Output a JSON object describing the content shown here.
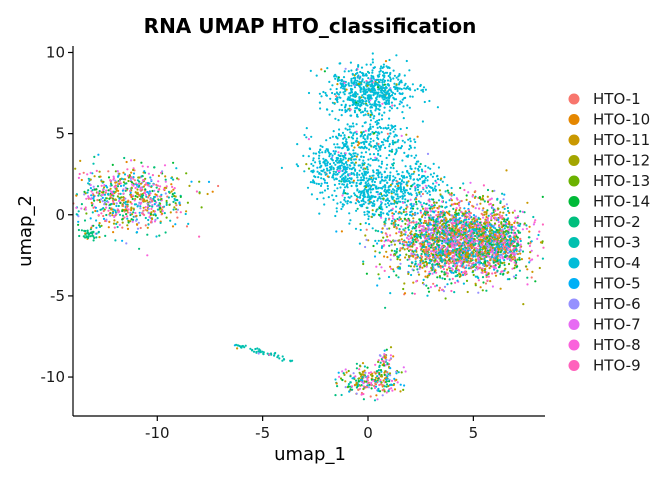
{
  "chart_data": {
    "type": "scatter",
    "title": "RNA UMAP HTO_classification",
    "xlabel": "umap_1",
    "ylabel": "umap_2",
    "xlim": [
      -14.0,
      8.4
    ],
    "ylim": [
      -12.4,
      10.4
    ],
    "x_ticks": [
      -10,
      -5,
      0,
      5
    ],
    "y_ticks": [
      -10,
      -5,
      0,
      5,
      10
    ],
    "grid": false,
    "legend_position": "right",
    "series": [
      {
        "name": "HTO-1",
        "color": "#F8766D"
      },
      {
        "name": "HTO-10",
        "color": "#E58700"
      },
      {
        "name": "HTO-11",
        "color": "#C99800"
      },
      {
        "name": "HTO-12",
        "color": "#A3A500"
      },
      {
        "name": "HTO-13",
        "color": "#6BB100"
      },
      {
        "name": "HTO-14",
        "color": "#00BA38"
      },
      {
        "name": "HTO-2",
        "color": "#00BF7D"
      },
      {
        "name": "HTO-3",
        "color": "#00C0AF"
      },
      {
        "name": "HTO-4",
        "color": "#00BCD8"
      },
      {
        "name": "HTO-5",
        "color": "#00B0F6"
      },
      {
        "name": "HTO-6",
        "color": "#9590FF"
      },
      {
        "name": "HTO-7",
        "color": "#E76BF3"
      },
      {
        "name": "HTO-8",
        "color": "#FA62DB"
      },
      {
        "name": "HTO-9",
        "color": "#FF62BC"
      }
    ],
    "clusters": [
      {
        "cx": -11.3,
        "cy": 1.0,
        "sx": 1.3,
        "sy": 1.0,
        "n": 750,
        "mix": "all"
      },
      {
        "cx": -13.2,
        "cy": -1.2,
        "sx": 0.25,
        "sy": 0.15,
        "n": 40,
        "mix": "HTO-2"
      },
      {
        "cx": 0.0,
        "cy": 7.6,
        "sx": 1.0,
        "sy": 0.8,
        "n": 650,
        "mix": "HTO-4"
      },
      {
        "cx": 0.4,
        "cy": 4.6,
        "sx": 0.9,
        "sy": 0.7,
        "n": 220,
        "mix": "HTO-4"
      },
      {
        "cx": -1.4,
        "cy": 3.0,
        "sx": 0.8,
        "sy": 0.9,
        "n": 350,
        "mix": "HTO-4"
      },
      {
        "cx": 0.4,
        "cy": 1.2,
        "sx": 0.9,
        "sy": 0.9,
        "n": 350,
        "mix": "HTO-4"
      },
      {
        "cx": 2.2,
        "cy": 1.8,
        "sx": 0.8,
        "sy": 0.8,
        "n": 220,
        "mix": "HTO-4"
      },
      {
        "cx": 4.2,
        "cy": -1.6,
        "sx": 1.6,
        "sy": 1.2,
        "n": 2600,
        "mix": "all"
      },
      {
        "cx": 6.2,
        "cy": -1.8,
        "sx": 0.5,
        "sy": 0.7,
        "n": 350,
        "mix": "all"
      },
      {
        "cx": 0.1,
        "cy": -10.2,
        "sx": 0.7,
        "sy": 0.45,
        "n": 260,
        "mix": "all"
      },
      {
        "cx": 0.8,
        "cy": -9.0,
        "sx": 0.2,
        "sy": 0.4,
        "n": 40,
        "mix": "all"
      },
      {
        "cx": -5.0,
        "cy": -8.5,
        "sx": 0.5,
        "sy": 0.2,
        "n": 50,
        "mix": "HTO-3",
        "streak": true
      }
    ]
  }
}
